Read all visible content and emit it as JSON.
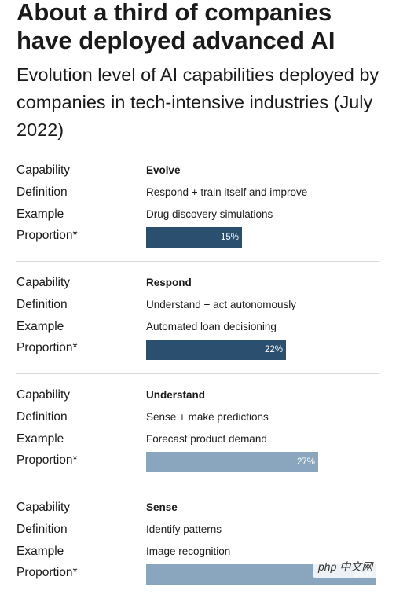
{
  "title": "About a third of companies have deployed advanced AI",
  "subtitle": "Evolution level of AI capabilities deployed by companies in tech-intensive industries (July 2022)",
  "labels": {
    "capability": "Capability",
    "definition": "Definition",
    "example": "Example",
    "proportion": "Proportion*"
  },
  "watermark": "php 中文网",
  "colors": {
    "dark": "#2b506f",
    "light": "#8aa6bf"
  },
  "chart_data": {
    "type": "bar",
    "title": "About a third of companies have deployed advanced AI",
    "subtitle": "Evolution level of AI capabilities deployed by companies in tech-intensive industries (July 2022)",
    "categories": [
      "Evolve",
      "Respond",
      "Understand",
      "Sense"
    ],
    "values": [
      15,
      22,
      27,
      36
    ],
    "value_labels": [
      "15%",
      "22%",
      "27%",
      "36%"
    ],
    "unit": "%",
    "rows": [
      {
        "capability": "Evolve",
        "definition": "Respond + train itself and improve",
        "example": "Drug discovery simulations",
        "value": 15,
        "value_label": "15%"
      },
      {
        "capability": "Respond",
        "definition": "Understand + act autonomously",
        "example": "Automated loan decisioning",
        "value": 22,
        "value_label": "22%"
      },
      {
        "capability": "Understand",
        "definition": "Sense + make predictions",
        "example": "Forecast product demand",
        "value": 27,
        "value_label": "27%"
      },
      {
        "capability": "Sense",
        "definition": "Identify patterns",
        "example": "Image recognition",
        "value": 36,
        "value_label": "36%"
      }
    ]
  }
}
